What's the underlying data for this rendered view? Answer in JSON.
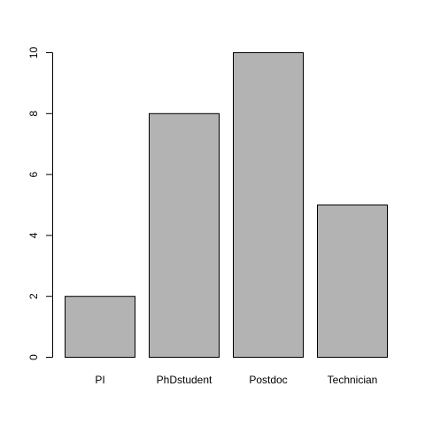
{
  "chart_data": {
    "type": "bar",
    "title": "",
    "xlabel": "",
    "ylabel": "",
    "categories": [
      "PI",
      "PhDstudent",
      "Postdoc",
      "Technician"
    ],
    "values": [
      2,
      8,
      10,
      5
    ],
    "ylim": [
      0,
      10
    ],
    "yticks": [
      "0",
      "2",
      "4",
      "6",
      "8",
      "10"
    ],
    "grid": false,
    "bar_color": "#b3b3b3",
    "bar_stroke": "#000000"
  }
}
